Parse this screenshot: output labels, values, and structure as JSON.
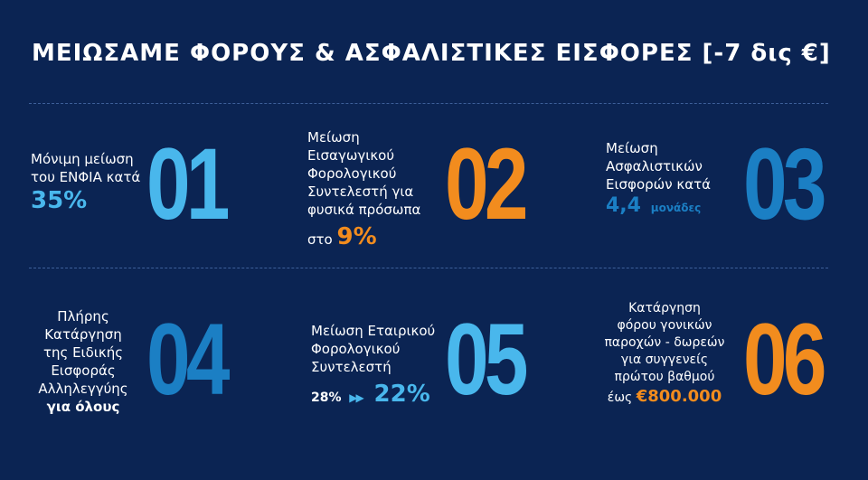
{
  "title": "ΜΕΙΩΣΑΜΕ ΦΟΡΟΥΣ & ΑΣΦΑΛΙΣΤΙΚΕΣ ΕΙΣΦΟΡΕΣ [-7 δις €]",
  "colors": {
    "background": "#0b2453",
    "light_blue": "#49b7ec",
    "orange": "#f28c1e",
    "dark_blue": "#1b7fc4"
  },
  "items": [
    {
      "number": "01",
      "lines": [
        "Μόνιμη μείωση",
        "του ΕΝΦΙΑ κατά"
      ],
      "value": "35%"
    },
    {
      "number": "02",
      "lines": [
        "Μείωση",
        "Εισαγωγικού",
        "Φορολογικού",
        "Συντελεστή για",
        "φυσικά πρόσωπα"
      ],
      "prefix": "στο",
      "value": "9%"
    },
    {
      "number": "03",
      "lines": [
        "Μείωση",
        "Ασφαλιστικών",
        "Εισφορών κατά"
      ],
      "value": "4,4",
      "unit": "μονάδες"
    },
    {
      "number": "04",
      "lines": [
        "Πλήρης",
        "Κατάργηση",
        "της Ειδικής",
        "Εισφοράς",
        "Αλληλεγγύης"
      ],
      "value": "για όλους"
    },
    {
      "number": "05",
      "lines": [
        "Μείωση Εταιρικού",
        "Φορολογικού",
        "Συντελεστή"
      ],
      "from": "28%",
      "arrow": "▶▶",
      "value": "22%"
    },
    {
      "number": "06",
      "lines": [
        "Κατάργηση",
        "φόρου γονικών",
        "παροχών - δωρεών",
        "για συγγενείς",
        "πρώτου βαθμού"
      ],
      "prefix": "έως",
      "value": "€800.000"
    }
  ]
}
